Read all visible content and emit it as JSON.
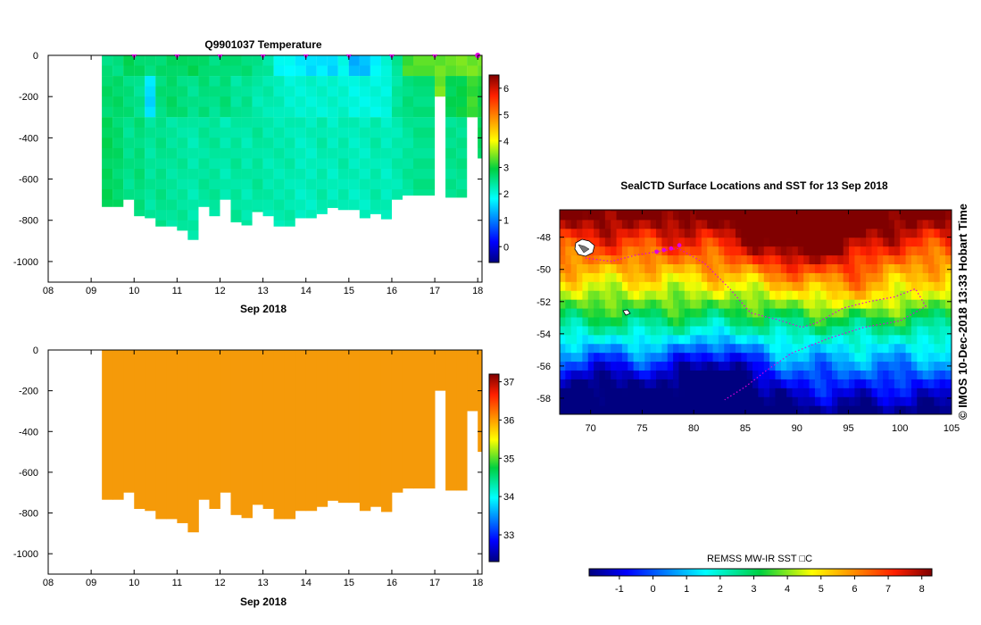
{
  "chart_data": [
    {
      "type": "heatmap",
      "title": "Q9901037  Temperature",
      "xlabel": "Sep 2018",
      "x_ticks": [
        "08",
        "09",
        "10",
        "11",
        "12",
        "13",
        "14",
        "15",
        "16",
        "17",
        "18"
      ],
      "xlim": [
        8,
        18.1
      ],
      "y_ticks": [
        "0",
        "-200",
        "-400",
        "-600",
        "-800",
        "-1000"
      ],
      "ylim": [
        -1100,
        0
      ],
      "colorbar_ticks": [
        "0",
        "1",
        "2",
        "3",
        "4",
        "5",
        "6"
      ],
      "colorbar_range": [
        -0.6,
        6.5
      ],
      "profile_markers_day": [
        10,
        11,
        12,
        13,
        14,
        15,
        16,
        17,
        18
      ],
      "profiles": [
        {
          "day": 9.25,
          "depth": 735,
          "v": [
            2.6,
            2.7,
            2.8
          ]
        },
        {
          "day": 9.5,
          "depth": 735,
          "v": [
            2.6,
            2.7,
            2.7
          ]
        },
        {
          "day": 9.75,
          "depth": 700,
          "v": [
            2.8,
            2.6,
            2.5
          ]
        },
        {
          "day": 10.0,
          "depth": 780,
          "v": [
            2.7,
            2.5,
            2.6
          ]
        },
        {
          "day": 10.25,
          "depth": 790,
          "v": [
            2.6,
            1.6,
            2.4
          ]
        },
        {
          "day": 10.5,
          "depth": 830,
          "v": [
            2.7,
            2.6,
            2.5
          ]
        },
        {
          "day": 10.75,
          "depth": 830,
          "v": [
            2.8,
            2.7,
            2.4
          ]
        },
        {
          "day": 11.0,
          "depth": 850,
          "v": [
            2.7,
            2.6,
            2.4
          ]
        },
        {
          "day": 11.25,
          "depth": 895,
          "v": [
            2.8,
            2.5,
            2.3
          ]
        },
        {
          "day": 11.5,
          "depth": 735,
          "v": [
            2.7,
            2.6,
            2.4
          ]
        },
        {
          "day": 11.75,
          "depth": 780,
          "v": [
            2.6,
            2.5,
            2.4
          ]
        },
        {
          "day": 12.0,
          "depth": 700,
          "v": [
            2.7,
            2.6,
            2.3
          ]
        },
        {
          "day": 12.25,
          "depth": 810,
          "v": [
            2.6,
            2.4,
            2.4
          ]
        },
        {
          "day": 12.5,
          "depth": 825,
          "v": [
            2.6,
            2.5,
            2.3
          ]
        },
        {
          "day": 12.75,
          "depth": 760,
          "v": [
            2.5,
            2.3,
            2.4
          ]
        },
        {
          "day": 13.0,
          "depth": 780,
          "v": [
            2.4,
            2.3,
            2.3
          ]
        },
        {
          "day": 13.25,
          "depth": 830,
          "v": [
            1.9,
            2.2,
            2.3
          ]
        },
        {
          "day": 13.5,
          "depth": 830,
          "v": [
            1.8,
            2.1,
            2.3
          ]
        },
        {
          "day": 13.75,
          "depth": 790,
          "v": [
            1.7,
            2.1,
            2.2
          ]
        },
        {
          "day": 14.0,
          "depth": 790,
          "v": [
            1.6,
            2.1,
            2.2
          ]
        },
        {
          "day": 14.25,
          "depth": 770,
          "v": [
            1.7,
            2.1,
            2.3
          ]
        },
        {
          "day": 14.5,
          "depth": 740,
          "v": [
            1.6,
            2.1,
            2.2
          ]
        },
        {
          "day": 14.75,
          "depth": 750,
          "v": [
            1.9,
            2.1,
            2.3
          ]
        },
        {
          "day": 15.0,
          "depth": 750,
          "v": [
            1.3,
            2.0,
            2.2
          ]
        },
        {
          "day": 15.25,
          "depth": 790,
          "v": [
            1.4,
            2.0,
            2.2
          ]
        },
        {
          "day": 15.5,
          "depth": 770,
          "v": [
            1.8,
            2.0,
            2.3
          ]
        },
        {
          "day": 15.75,
          "depth": 795,
          "v": [
            2.1,
            2.0,
            2.2
          ]
        },
        {
          "day": 16.0,
          "depth": 700,
          "v": [
            2.4,
            2.4,
            2.3
          ]
        },
        {
          "day": 16.25,
          "depth": 680,
          "v": [
            3.2,
            2.6,
            2.4
          ]
        },
        {
          "day": 16.5,
          "depth": 680,
          "v": [
            3.3,
            2.6,
            2.5
          ]
        },
        {
          "day": 17.0,
          "depth": 200,
          "v": [
            3.4,
            3.4,
            3.4
          ]
        },
        {
          "day": 17.25,
          "depth": 690,
          "v": [
            3.4,
            2.8,
            2.5
          ]
        },
        {
          "day": 17.5,
          "depth": 690,
          "v": [
            3.4,
            2.9,
            2.5
          ]
        },
        {
          "day": 17.75,
          "depth": 300,
          "v": [
            3.4,
            3.2,
            3.2
          ]
        },
        {
          "day": 18.0,
          "depth": 500,
          "v": [
            3.4,
            3.0,
            2.8
          ]
        }
      ]
    },
    {
      "type": "heatmap",
      "title": "",
      "xlabel": "Sep 2018",
      "x_ticks": [
        "08",
        "09",
        "10",
        "11",
        "12",
        "13",
        "14",
        "15",
        "16",
        "17",
        "18"
      ],
      "xlim": [
        8,
        18.1
      ],
      "y_ticks": [
        "0",
        "-200",
        "-400",
        "-600",
        "-800",
        "-1000"
      ],
      "ylim": [
        -1100,
        0
      ],
      "colorbar_ticks": [
        "33",
        "34",
        "35",
        "36",
        "37"
      ],
      "colorbar_range": [
        32.3,
        37.2
      ],
      "uniform_value": 35.9
    },
    {
      "type": "heatmap",
      "title": "SealCTD Surface Locations and SST for 13 Sep 2018",
      "x_ticks": [
        "70",
        "75",
        "80",
        "85",
        "90",
        "95",
        "100",
        "105"
      ],
      "xlim": [
        67,
        105
      ],
      "y_ticks": [
        "-48",
        "-50",
        "-52",
        "-54",
        "-56",
        "-58"
      ],
      "ylim": [
        -59,
        -46.3
      ],
      "colorbar_label": "REMSS MW-IR SST □C",
      "colorbar_ticks": [
        "-1",
        "0",
        "1",
        "2",
        "3",
        "4",
        "5",
        "6",
        "7",
        "8"
      ],
      "colorbar_range": [
        -1.9,
        8.3
      ],
      "track_lonlat": [
        [
          69.5,
          -49.3
        ],
        [
          72,
          -49.5
        ],
        [
          74.5,
          -49.1
        ],
        [
          76.5,
          -48.9
        ],
        [
          78.5,
          -48.7
        ],
        [
          81,
          -49.6
        ],
        [
          83.5,
          -51.2
        ],
        [
          85.5,
          -52.7
        ],
        [
          88,
          -53.1
        ],
        [
          90.5,
          -53.6
        ],
        [
          92,
          -53.3
        ],
        [
          94.5,
          -52.4
        ],
        [
          97,
          -52
        ],
        [
          99.5,
          -51.7
        ],
        [
          101.5,
          -51.2
        ],
        [
          102.5,
          -52.3
        ],
        [
          100,
          -53.2
        ],
        [
          96.5,
          -53.6
        ],
        [
          93,
          -54.3
        ],
        [
          89.5,
          -55.2
        ],
        [
          87,
          -56.3
        ],
        [
          85,
          -57.3
        ],
        [
          83,
          -58.1
        ]
      ],
      "highlight_lonlat": [
        [
          76.4,
          -48.9
        ],
        [
          77.1,
          -48.8
        ],
        [
          77.8,
          -48.7
        ],
        [
          78.6,
          -48.5
        ]
      ]
    }
  ],
  "side_label": "© IMOS 10-Dec-2018 13:33 Hobart Time",
  "colors": {
    "marker": "#e000e0",
    "salinity_fill": "#f59a09"
  }
}
